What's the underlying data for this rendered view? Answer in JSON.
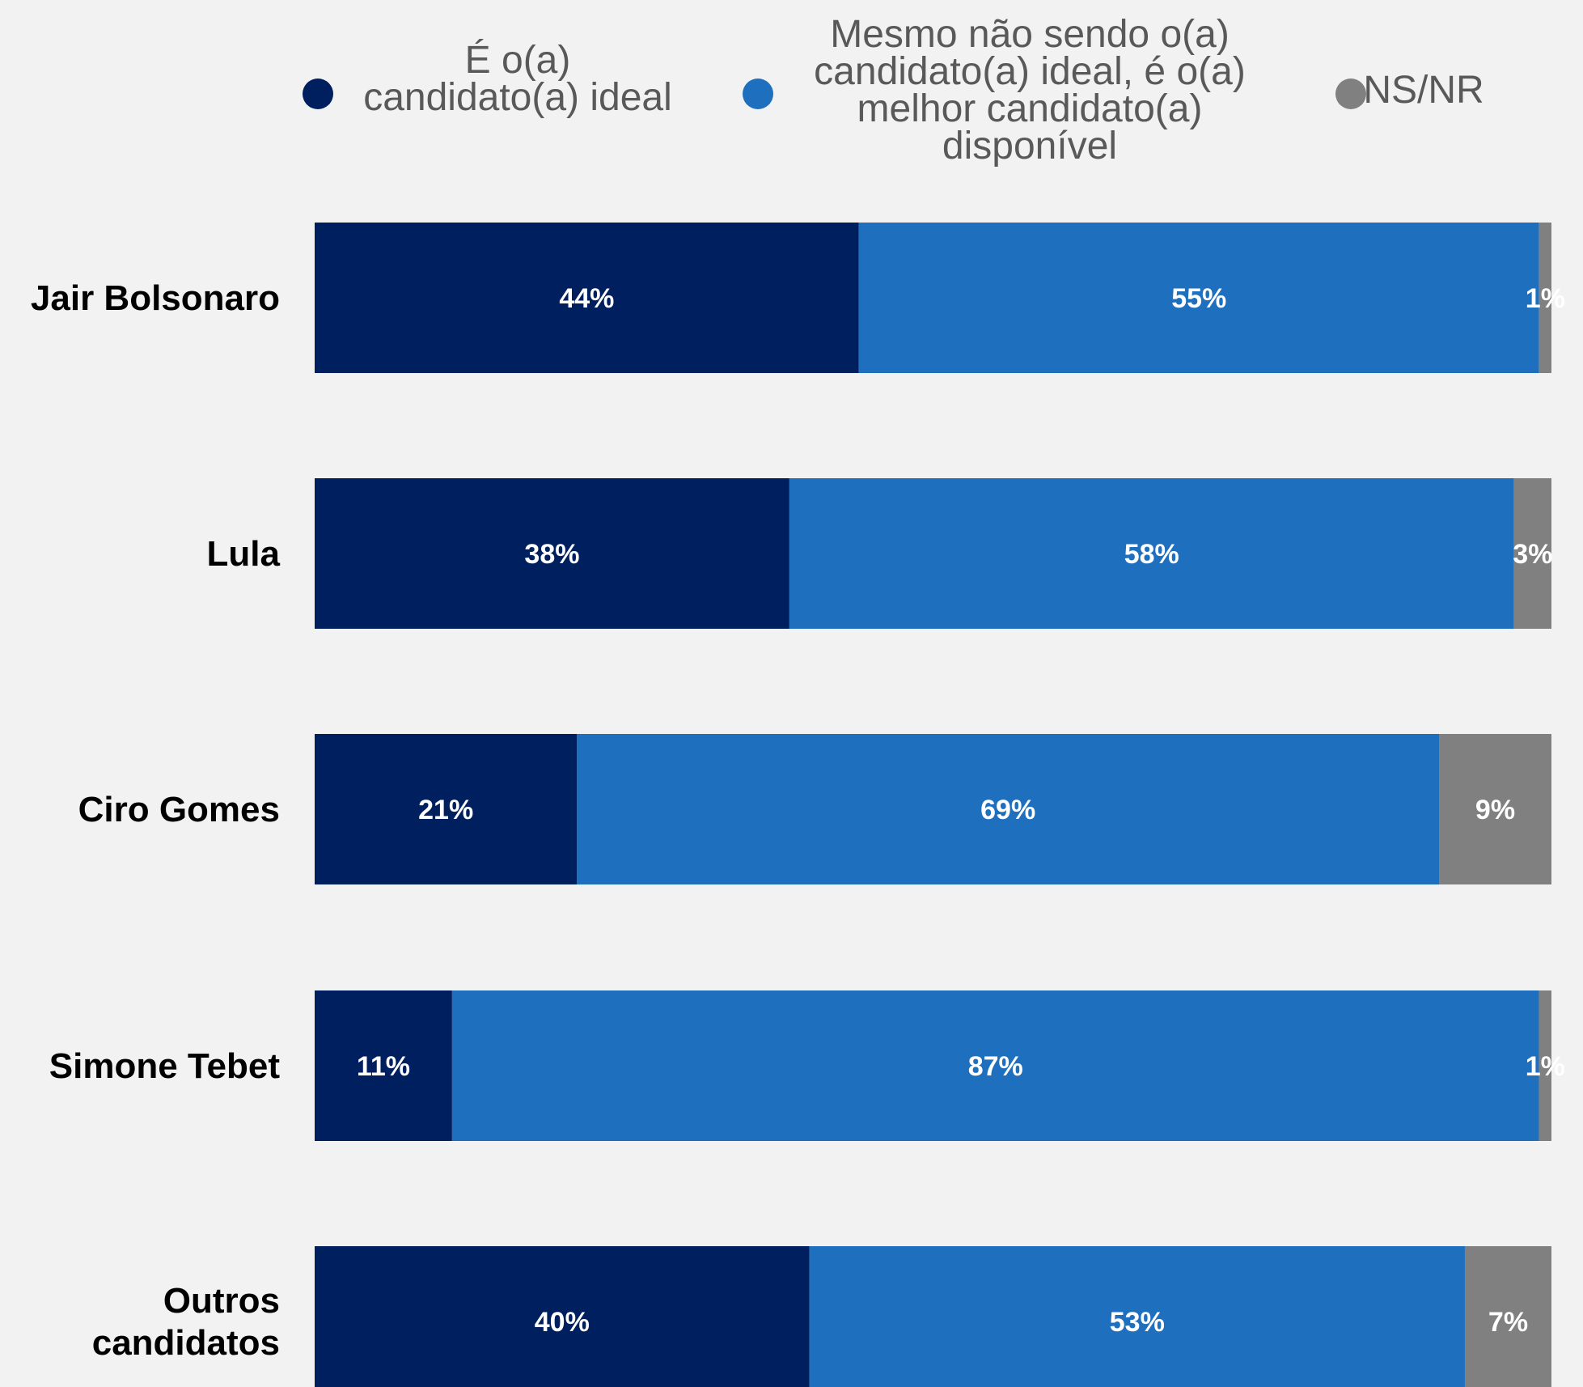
{
  "chart_data": {
    "type": "bar",
    "orientation": "horizontal",
    "stacked": true,
    "categories": [
      "Jair Bolsonaro",
      "Lula",
      "Ciro Gomes",
      "Simone Tebet",
      "Outros candidatos"
    ],
    "series": [
      {
        "name": "É o(a) candidato(a) ideal",
        "color": "#001f5f",
        "values": [
          44,
          38,
          21,
          11,
          40
        ]
      },
      {
        "name": "Mesmo não sendo o(a) candidato(a) ideal, é o(a) melhor candidato(a) disponível",
        "color": "#1f6fbf",
        "values": [
          55,
          58,
          69,
          87,
          53
        ]
      },
      {
        "name": "NS/NR",
        "color": "#808080",
        "values": [
          1,
          3,
          9,
          1,
          7
        ]
      }
    ],
    "value_suffix": "%",
    "legend_position": "top",
    "grid": false
  }
}
